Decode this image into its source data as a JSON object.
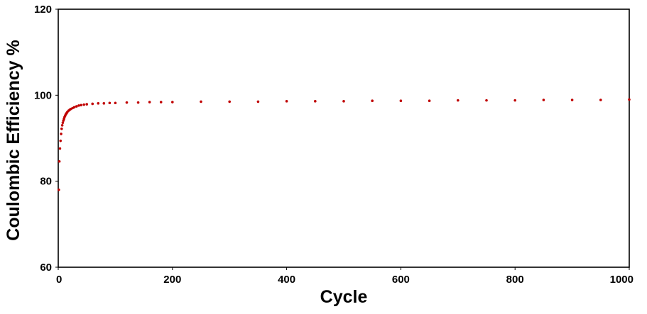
{
  "chart_data": {
    "type": "scatter",
    "title": "",
    "xlabel": "Cycle",
    "ylabel": "Coulombic Efficiency %",
    "xlim": [
      0,
      1000
    ],
    "ylim": [
      60,
      120
    ],
    "xticks": [
      0,
      200,
      400,
      600,
      800,
      1000
    ],
    "yticks": [
      60,
      80,
      100,
      120
    ],
    "grid": false,
    "legend": "none",
    "series": [
      {
        "color": "#c00000",
        "x": [
          1,
          2,
          3,
          4,
          5,
          6,
          7,
          8,
          9,
          10,
          11,
          12,
          13,
          14,
          15,
          16,
          18,
          20,
          22,
          25,
          28,
          32,
          36,
          40,
          45,
          50,
          60,
          70,
          80,
          90,
          100,
          120,
          140,
          160,
          180,
          200,
          250,
          300,
          350,
          400,
          450,
          500,
          550,
          600,
          650,
          700,
          750,
          800,
          850,
          900,
          950,
          1000
        ],
        "y": [
          78.0,
          84.6,
          87.6,
          89.4,
          91.0,
          92.2,
          93.0,
          93.6,
          94.1,
          94.5,
          94.9,
          95.2,
          95.5,
          95.7,
          95.9,
          96.1,
          96.4,
          96.6,
          96.8,
          97.0,
          97.2,
          97.4,
          97.6,
          97.7,
          97.8,
          97.9,
          98.0,
          98.1,
          98.1,
          98.2,
          98.2,
          98.3,
          98.3,
          98.4,
          98.4,
          98.4,
          98.5,
          98.5,
          98.5,
          98.6,
          98.6,
          98.6,
          98.7,
          98.7,
          98.7,
          98.8,
          98.8,
          98.8,
          98.9,
          98.9,
          98.9,
          99.0
        ]
      }
    ]
  }
}
